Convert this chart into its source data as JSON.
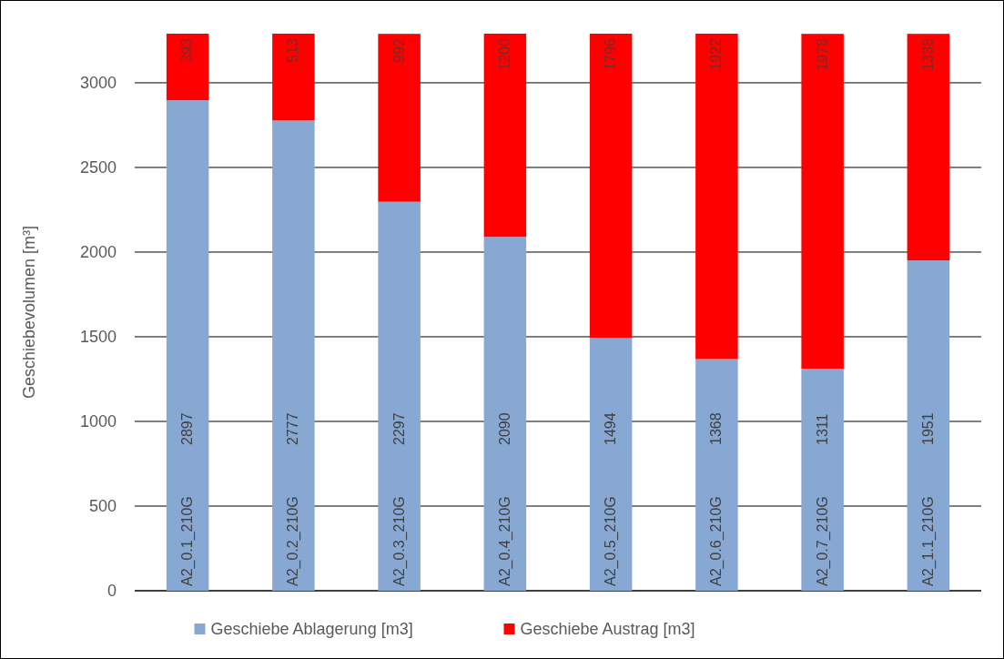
{
  "chart_data": {
    "type": "bar",
    "stacked": true,
    "ylabel": "Geschiebevolumen [m³]",
    "categories": [
      "A2_0.1_210G",
      "A2_0.2_210G",
      "A2_0.3_210G",
      "A2_0.4_210G",
      "A2_0.5_210G",
      "A2_0.6_210G",
      "A2_0.7_210G",
      "A2_1.1_210G"
    ],
    "series": [
      {
        "name": "Geschiebe Ablagerung [m3]",
        "color": "#88a8d4",
        "values": [
          2897,
          2777,
          2297,
          2090,
          1494,
          1368,
          1311,
          1951
        ]
      },
      {
        "name": "Geschiebe Austrag [m3]",
        "color": "#ff0000",
        "values": [
          393,
          513,
          992,
          1200,
          1796,
          1922,
          1978,
          1338
        ]
      }
    ],
    "ylim": [
      0,
      3290
    ],
    "yticks": [
      0,
      500,
      1000,
      1500,
      2000,
      2500,
      3000
    ],
    "grid": "y",
    "legend": "bottom",
    "data_labels": true
  }
}
